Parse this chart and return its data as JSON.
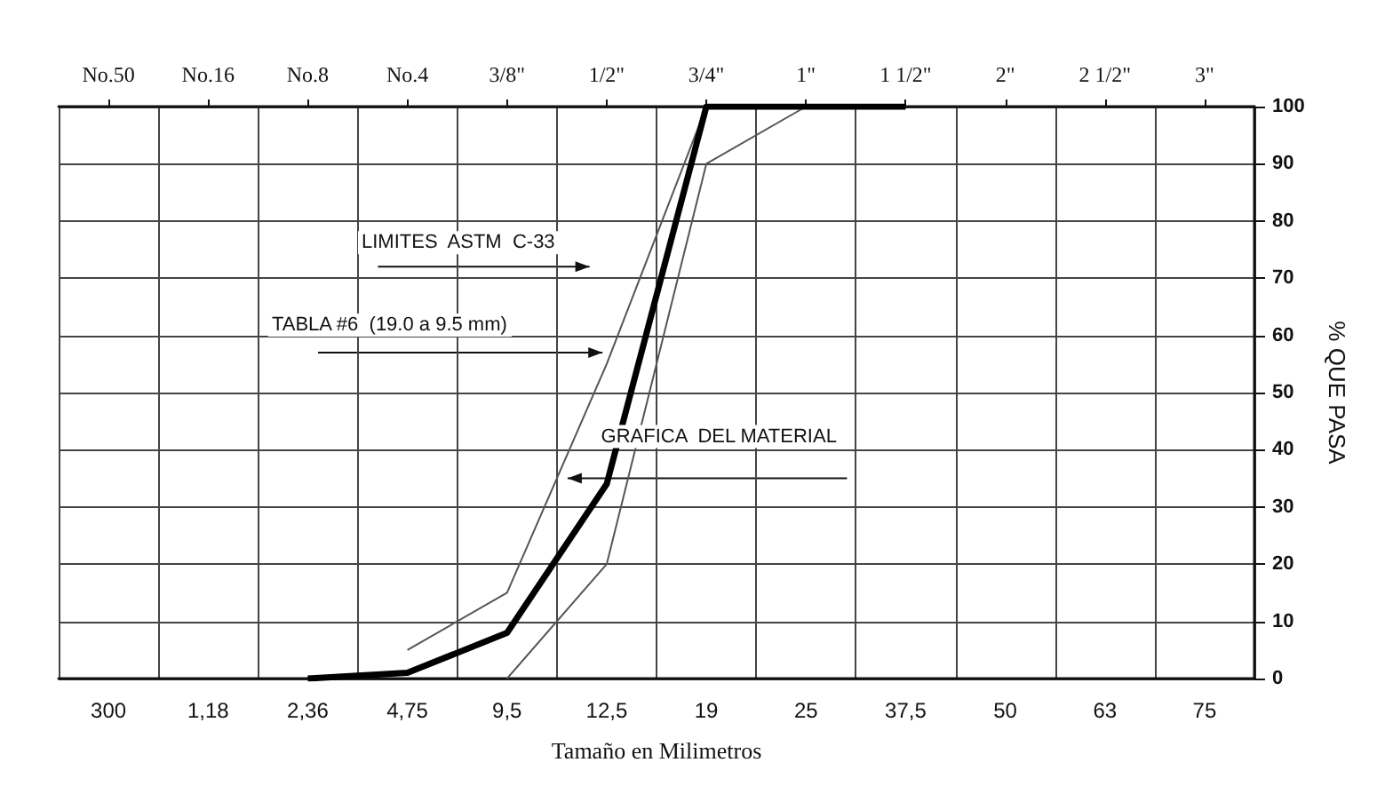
{
  "chart_data": {
    "type": "line",
    "xlabel": "Tamaño en Milimetros",
    "ylabel": "% QUE PASA",
    "categories": [
      "300",
      "1,18",
      "2,36",
      "4,75",
      "9,5",
      "12,5",
      "19",
      "25",
      "37,5",
      "50",
      "63",
      "75"
    ],
    "series": [
      {
        "color": "#555555",
        "values": [
          null,
          null,
          null,
          5,
          15,
          55,
          100,
          100,
          null,
          null,
          null,
          null
        ]
      },
      {
        "color": "#555555",
        "values": [
          null,
          null,
          null,
          null,
          0,
          20,
          90,
          100,
          null,
          null,
          null,
          null
        ]
      },
      {
        "color": "#000000",
        "values": [
          null,
          null,
          0,
          1,
          8,
          34,
          100,
          100,
          100,
          null,
          null,
          null
        ]
      }
    ],
    "ylim": [
      0,
      100
    ],
    "yticks": [
      0,
      10,
      20,
      30,
      40,
      50,
      60,
      70,
      80,
      90,
      100
    ],
    "grid": true,
    "line_style": "solid",
    "marker": "none",
    "annotations": [
      "LIMITES  ASTM  C-33",
      "TABLA #6  (19.0 a 9.5 mm)",
      "GRAFICA  DEL MATERIAL",
      "No.50",
      "No.16",
      "No.8",
      "No.4",
      "3/8\"",
      "1/2\"",
      "3/4\"",
      "1\"",
      "1 1/2\"",
      "2\"",
      "2 1/2\"",
      "3\""
    ]
  }
}
